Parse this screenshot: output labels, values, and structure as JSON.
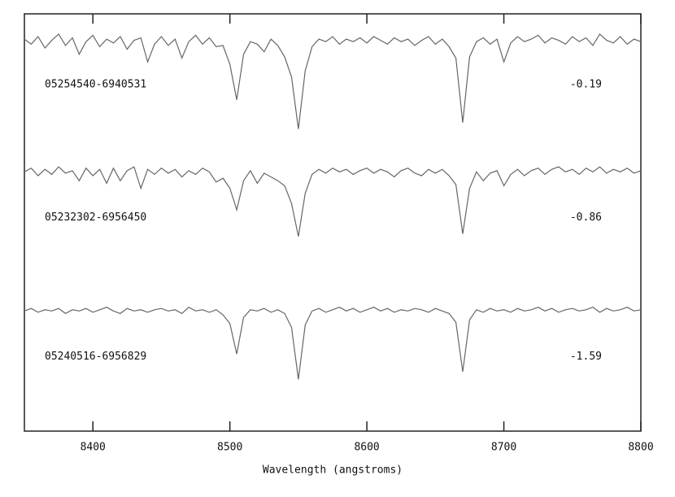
{
  "chart_data": {
    "type": "line",
    "x_label": "Wavelength (angstroms)",
    "xlim": [
      8350,
      8800
    ],
    "xticks": [
      8400,
      8500,
      8600,
      8700,
      8800
    ],
    "ylim": [
      0,
      3.3
    ],
    "x": [
      8350,
      8355,
      8360,
      8365,
      8370,
      8375,
      8380,
      8385,
      8390,
      8395,
      8400,
      8405,
      8410,
      8415,
      8420,
      8425,
      8430,
      8435,
      8440,
      8445,
      8450,
      8455,
      8460,
      8465,
      8470,
      8475,
      8480,
      8485,
      8490,
      8495,
      8500,
      8505,
      8510,
      8515,
      8520,
      8525,
      8530,
      8535,
      8540,
      8545,
      8550,
      8555,
      8560,
      8565,
      8570,
      8575,
      8580,
      8585,
      8590,
      8595,
      8600,
      8605,
      8610,
      8615,
      8620,
      8625,
      8630,
      8635,
      8640,
      8645,
      8650,
      8655,
      8660,
      8665,
      8670,
      8675,
      8680,
      8685,
      8690,
      8695,
      8700,
      8705,
      8710,
      8715,
      8720,
      8725,
      8730,
      8735,
      8740,
      8745,
      8750,
      8755,
      8760,
      8765,
      8770,
      8775,
      8780,
      8785,
      8790,
      8795,
      8800
    ],
    "series": [
      {
        "name": "05254540-6940531",
        "annotation": "-0.19",
        "color": "#666666",
        "values": [
          3.1,
          3.06,
          3.12,
          3.03,
          3.09,
          3.14,
          3.05,
          3.11,
          2.98,
          3.08,
          3.13,
          3.04,
          3.1,
          3.07,
          3.12,
          3.02,
          3.09,
          3.11,
          2.92,
          3.06,
          3.12,
          3.05,
          3.1,
          2.95,
          3.08,
          3.13,
          3.06,
          3.11,
          3.04,
          3.05,
          2.9,
          2.62,
          2.98,
          3.08,
          3.06,
          3.0,
          3.1,
          3.05,
          2.96,
          2.8,
          2.39,
          2.85,
          3.04,
          3.1,
          3.08,
          3.12,
          3.06,
          3.1,
          3.08,
          3.11,
          3.07,
          3.12,
          3.09,
          3.06,
          3.11,
          3.08,
          3.1,
          3.05,
          3.09,
          3.12,
          3.06,
          3.1,
          3.04,
          2.95,
          2.44,
          2.96,
          3.08,
          3.11,
          3.06,
          3.1,
          2.92,
          3.07,
          3.12,
          3.08,
          3.1,
          3.13,
          3.07,
          3.11,
          3.09,
          3.06,
          3.12,
          3.08,
          3.11,
          3.05,
          3.14,
          3.09,
          3.07,
          3.12,
          3.06,
          3.1,
          3.08
        ]
      },
      {
        "name": "05232302-6956450",
        "annotation": "-0.86",
        "color": "#666666",
        "values": [
          2.05,
          2.08,
          2.02,
          2.07,
          2.03,
          2.09,
          2.04,
          2.06,
          1.98,
          2.08,
          2.02,
          2.07,
          1.96,
          2.08,
          1.98,
          2.06,
          2.09,
          1.92,
          2.07,
          2.03,
          2.08,
          2.04,
          2.07,
          2.01,
          2.06,
          2.03,
          2.08,
          2.05,
          1.97,
          2.0,
          1.92,
          1.75,
          1.98,
          2.06,
          1.96,
          2.04,
          2.01,
          1.98,
          1.94,
          1.8,
          1.54,
          1.88,
          2.03,
          2.07,
          2.04,
          2.08,
          2.05,
          2.07,
          2.03,
          2.06,
          2.08,
          2.04,
          2.07,
          2.05,
          2.01,
          2.06,
          2.08,
          2.04,
          2.02,
          2.07,
          2.04,
          2.07,
          2.02,
          1.95,
          1.56,
          1.92,
          2.05,
          1.98,
          2.04,
          2.06,
          1.94,
          2.03,
          2.07,
          2.02,
          2.06,
          2.08,
          2.03,
          2.07,
          2.09,
          2.05,
          2.07,
          2.03,
          2.08,
          2.05,
          2.09,
          2.04,
          2.07,
          2.05,
          2.08,
          2.04,
          2.06
        ]
      },
      {
        "name": "05240516-6956829",
        "annotation": "-1.59",
        "color": "#666666",
        "values": [
          0.95,
          0.97,
          0.94,
          0.96,
          0.95,
          0.97,
          0.93,
          0.96,
          0.95,
          0.97,
          0.94,
          0.96,
          0.98,
          0.95,
          0.93,
          0.97,
          0.95,
          0.96,
          0.94,
          0.96,
          0.97,
          0.95,
          0.96,
          0.93,
          0.98,
          0.95,
          0.96,
          0.94,
          0.96,
          0.92,
          0.85,
          0.61,
          0.9,
          0.96,
          0.95,
          0.97,
          0.94,
          0.96,
          0.93,
          0.82,
          0.41,
          0.84,
          0.95,
          0.97,
          0.94,
          0.96,
          0.98,
          0.95,
          0.97,
          0.94,
          0.96,
          0.98,
          0.95,
          0.97,
          0.94,
          0.96,
          0.95,
          0.97,
          0.96,
          0.94,
          0.97,
          0.95,
          0.93,
          0.86,
          0.47,
          0.88,
          0.96,
          0.94,
          0.97,
          0.95,
          0.96,
          0.94,
          0.97,
          0.95,
          0.96,
          0.98,
          0.95,
          0.97,
          0.94,
          0.96,
          0.97,
          0.95,
          0.96,
          0.98,
          0.94,
          0.97,
          0.95,
          0.96,
          0.98,
          0.95,
          0.96
        ]
      }
    ]
  }
}
